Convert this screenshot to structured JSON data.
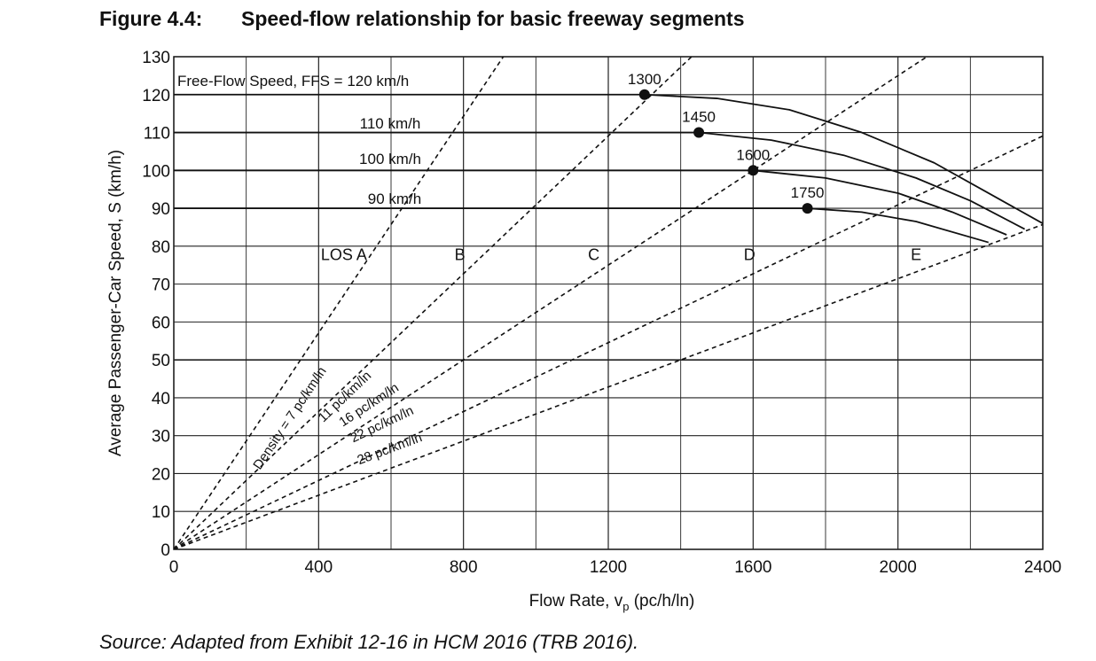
{
  "figure": {
    "label": "Figure 4.4:",
    "title": "Speed-flow relationship for basic freeway segments",
    "source": "Source: Adapted from Exhibit 12-16 in HCM 2016 (TRB 2016)."
  },
  "chart_data": {
    "type": "line",
    "xlabel": "Flow Rate, v",
    "xlabel_sub": "p",
    "xlabel_units": " (pc/h/ln)",
    "ylabel": "Average Passenger-Car Speed, S (km/h)",
    "xlim": [
      0,
      2400
    ],
    "ylim": [
      0,
      130
    ],
    "xticks": [
      0,
      400,
      800,
      1200,
      1600,
      2000,
      2400
    ],
    "yticks": [
      0,
      10,
      20,
      30,
      40,
      50,
      60,
      70,
      80,
      90,
      100,
      110,
      120,
      130
    ],
    "grid": true,
    "series": [
      {
        "name": "Free-Flow Speed, FFS = 120 km/h",
        "ffs": 120,
        "breakpoint": 1300,
        "breakpoint_label": "1300",
        "points": [
          [
            0,
            120
          ],
          [
            1300,
            120
          ],
          [
            1500,
            119
          ],
          [
            1700,
            116
          ],
          [
            1900,
            110
          ],
          [
            2100,
            102
          ],
          [
            2250,
            94
          ],
          [
            2400,
            86
          ]
        ]
      },
      {
        "name": "110 km/h",
        "ffs": 110,
        "breakpoint": 1450,
        "breakpoint_label": "1450",
        "points": [
          [
            0,
            110
          ],
          [
            1450,
            110
          ],
          [
            1650,
            108
          ],
          [
            1850,
            104
          ],
          [
            2050,
            98
          ],
          [
            2200,
            92
          ],
          [
            2350,
            84.5
          ]
        ]
      },
      {
        "name": "100 km/h",
        "ffs": 100,
        "breakpoint": 1600,
        "breakpoint_label": "1600",
        "points": [
          [
            0,
            100
          ],
          [
            1600,
            100
          ],
          [
            1800,
            98
          ],
          [
            2000,
            94
          ],
          [
            2150,
            89
          ],
          [
            2300,
            83
          ]
        ]
      },
      {
        "name": "90 km/h",
        "ffs": 90,
        "breakpoint": 1750,
        "breakpoint_label": "1750",
        "points": [
          [
            0,
            90
          ],
          [
            1750,
            90
          ],
          [
            1900,
            89
          ],
          [
            2050,
            86.5
          ],
          [
            2250,
            81
          ]
        ]
      }
    ],
    "density_lines": [
      {
        "density": 7,
        "label": "Density = 7 pc/km/ln"
      },
      {
        "density": 11,
        "label": "11 pc/km/ln"
      },
      {
        "density": 16,
        "label": "16 pc/km/ln"
      },
      {
        "density": 22,
        "label": "22 pc/km/ln"
      },
      {
        "density": 28,
        "label": "28 pc/km/ln"
      }
    ],
    "los_labels": [
      {
        "label": "LOS A",
        "x": 470,
        "y": 78
      },
      {
        "label": "B",
        "x": 790,
        "y": 78
      },
      {
        "label": "C",
        "x": 1160,
        "y": 78
      },
      {
        "label": "D",
        "x": 1590,
        "y": 78
      },
      {
        "label": "E",
        "x": 2050,
        "y": 78
      }
    ]
  }
}
